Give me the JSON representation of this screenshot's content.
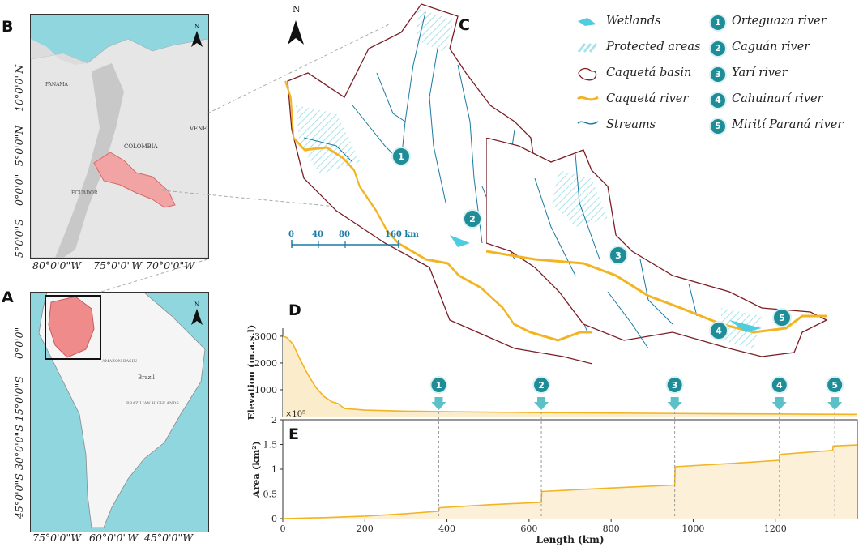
{
  "panels": {
    "A": "A",
    "B": "B",
    "C": "C",
    "D": "D",
    "E": "E"
  },
  "map_b": {
    "lat_ticks": [
      "10°0'0\"N",
      "5°0'0\"N",
      "0°0'0\"",
      "5°0'0\"S"
    ],
    "lon_ticks": [
      "80°0'0\"W",
      "75°0'0\"W",
      "70°0'0\"W"
    ],
    "labels": {
      "colombia": "COLOMBIA",
      "ecuador": "ECUADOR",
      "panama": "PANAMA",
      "vene": "VENE"
    },
    "north": "N"
  },
  "map_a": {
    "lat_ticks": [
      "0°0'0\"",
      "15°0'0\"S",
      "30°0'0\"S",
      "45°0'0\"S"
    ],
    "lon_ticks": [
      "75°0'0\"W",
      "60°0'0\"W",
      "45°0'0\"W"
    ],
    "labels": {
      "brazil": "Brazil",
      "amazon": "AMAZON BASIN",
      "highlands": "BRAZILIAN HIGHLANDS"
    },
    "north": "N"
  },
  "map_c": {
    "north": "N",
    "scale_labels": [
      "0",
      "40",
      "80",
      "160 km"
    ],
    "markers": [
      "1",
      "2",
      "3",
      "4",
      "5"
    ],
    "colors": {
      "river": "#f2b422",
      "streams": "#1a7aa3",
      "basin": "#7a1e24",
      "marker": "#1f8d98",
      "wetland": "#4ccde0",
      "protected": "#a9e3ea"
    }
  },
  "legend": {
    "left": [
      {
        "icon": "wetlands-icon",
        "label": "Wetlands"
      },
      {
        "icon": "protected-areas-icon",
        "label": "Protected areas"
      },
      {
        "icon": "caqueta-basin-icon",
        "label": "Caquetá basin"
      },
      {
        "icon": "caqueta-river-icon",
        "label": "Caquetá river"
      },
      {
        "icon": "streams-icon",
        "label": "Streams"
      }
    ],
    "right": [
      {
        "num": "1",
        "label": "Orteguaza river"
      },
      {
        "num": "2",
        "label": "Caguán river"
      },
      {
        "num": "3",
        "label": "Yarí river"
      },
      {
        "num": "4",
        "label": "Cahuinarí river"
      },
      {
        "num": "5",
        "label": "Mirití Paraná river"
      }
    ]
  },
  "chart_data": [
    {
      "type": "area",
      "panel": "D",
      "ylabel": "Elevation (m.a.s.l)",
      "ylim": [
        0,
        3300
      ],
      "yticks": [
        1000,
        2000,
        3000
      ],
      "xlim": [
        0,
        1400
      ],
      "x": [
        0,
        10,
        25,
        40,
        60,
        80,
        100,
        120,
        135,
        150,
        200,
        300,
        400,
        600,
        800,
        1000,
        1200,
        1400
      ],
      "values": [
        3000,
        2950,
        2700,
        2200,
        1600,
        1100,
        750,
        550,
        480,
        300,
        240,
        200,
        180,
        150,
        130,
        110,
        95,
        80
      ],
      "markers": [
        {
          "num": "1",
          "x": 380
        },
        {
          "num": "2",
          "x": 630
        },
        {
          "num": "3",
          "x": 955
        },
        {
          "num": "4",
          "x": 1210
        },
        {
          "num": "5",
          "x": 1345
        }
      ]
    },
    {
      "type": "area",
      "panel": "E",
      "ylabel": "Area (km²)",
      "xlabel": "Length (km)",
      "multiplier": "×10⁵",
      "ylim": [
        0,
        2
      ],
      "yticks": [
        0,
        0.5,
        1,
        1.5,
        2
      ],
      "xlim": [
        0,
        1400
      ],
      "xticks": [
        0,
        200,
        400,
        600,
        800,
        1000,
        1200
      ],
      "x": [
        0,
        100,
        200,
        300,
        380,
        381,
        500,
        630,
        631,
        800,
        955,
        956,
        1100,
        1210,
        1211,
        1340,
        1341,
        1400
      ],
      "values": [
        0,
        0.02,
        0.05,
        0.1,
        0.15,
        0.22,
        0.28,
        0.33,
        0.55,
        0.62,
        0.68,
        1.05,
        1.12,
        1.18,
        1.3,
        1.38,
        1.47,
        1.49
      ]
    }
  ]
}
